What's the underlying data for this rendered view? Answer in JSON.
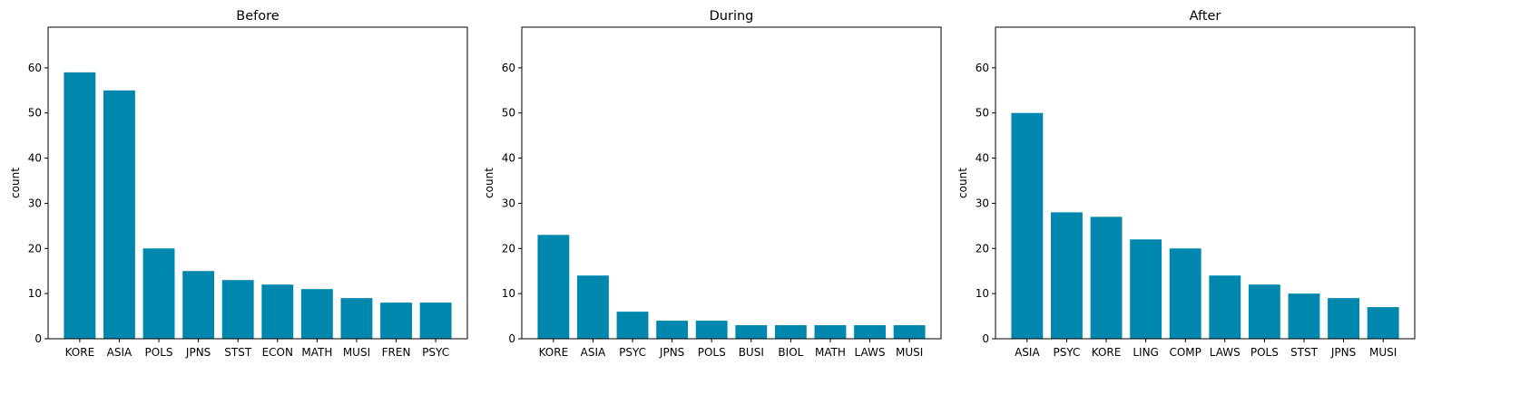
{
  "chart_data": [
    {
      "type": "bar",
      "title": "Before",
      "ylabel": "count",
      "xlabel": "",
      "ylim": [
        0,
        69
      ],
      "yticks": [
        0,
        10,
        20,
        30,
        40,
        50,
        60
      ],
      "categories": [
        "KORE",
        "ASIA",
        "POLS",
        "JPNS",
        "STST",
        "ECON",
        "MATH",
        "MUSI",
        "FREN",
        "PSYC"
      ],
      "values": [
        59,
        55,
        20,
        15,
        13,
        12,
        11,
        9,
        8,
        8
      ],
      "color": "#0087AE"
    },
    {
      "type": "bar",
      "title": "During",
      "ylabel": "count",
      "xlabel": "",
      "ylim": [
        0,
        69
      ],
      "yticks": [
        0,
        10,
        20,
        30,
        40,
        50,
        60
      ],
      "categories": [
        "KORE",
        "ASIA",
        "PSYC",
        "JPNS",
        "POLS",
        "BUSI",
        "BIOL",
        "MATH",
        "LAWS",
        "MUSI"
      ],
      "values": [
        23,
        14,
        6,
        4,
        4,
        3,
        3,
        3,
        3,
        3
      ],
      "color": "#0087AE"
    },
    {
      "type": "bar",
      "title": "After",
      "ylabel": "count",
      "xlabel": "",
      "ylim": [
        0,
        69
      ],
      "yticks": [
        0,
        10,
        20,
        30,
        40,
        50,
        60
      ],
      "categories": [
        "ASIA",
        "PSYC",
        "KORE",
        "LING",
        "COMP",
        "LAWS",
        "POLS",
        "STST",
        "JPNS",
        "MUSI"
      ],
      "values": [
        50,
        28,
        27,
        22,
        20,
        14,
        12,
        10,
        9,
        7
      ],
      "color": "#0087AE"
    }
  ]
}
